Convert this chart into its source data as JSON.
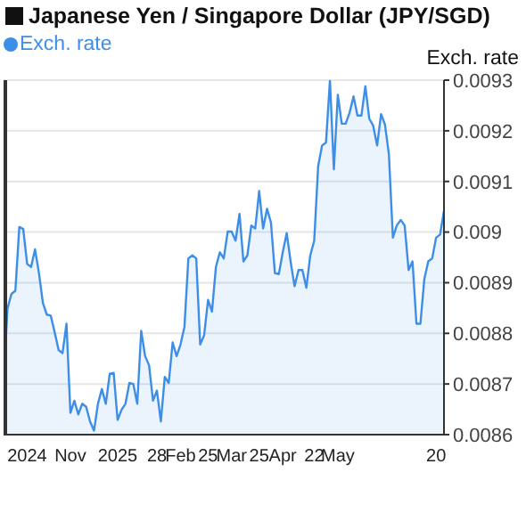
{
  "chart_data": {
    "type": "area",
    "title": "Japanese Yen / Singapore Dollar (JPY/SGD)",
    "ylabel": "Exch. rate",
    "legend": "top left",
    "grid": "y",
    "categories": [
      null,
      null,
      null,
      null,
      null,
      null,
      "2024",
      null,
      null,
      null,
      null,
      null,
      null,
      null,
      null,
      null,
      null,
      "Nov",
      null,
      null,
      null,
      null,
      null,
      null,
      null,
      null,
      null,
      null,
      null,
      "2025",
      null,
      null,
      null,
      null,
      null,
      null,
      null,
      null,
      null,
      "28",
      null,
      null,
      null,
      null,
      null,
      "Feb",
      null,
      null,
      null,
      null,
      null,
      null,
      "25",
      null,
      null,
      null,
      null,
      null,
      "Mar",
      null,
      null,
      null,
      null,
      null,
      null,
      "25",
      null,
      null,
      null,
      null,
      null,
      "Apr",
      null,
      null,
      null,
      null,
      null,
      null,
      null,
      "22",
      null,
      null,
      null,
      null,
      null,
      "May",
      null,
      null,
      null,
      null,
      null,
      null,
      null,
      null,
      null,
      null,
      null,
      null,
      null,
      null,
      null,
      null,
      null,
      null,
      null,
      null,
      null,
      null,
      null,
      null,
      "20",
      null,
      null
    ],
    "series": [
      {
        "name": "Exch. rate",
        "color": "#3d8ee8",
        "values": [
          0.008708,
          0.008849,
          0.008878,
          0.008884,
          0.00901,
          0.009006,
          0.008937,
          0.008931,
          0.008966,
          0.008919,
          0.00886,
          0.008837,
          0.008835,
          0.008802,
          0.008767,
          0.008761,
          0.008819,
          0.008643,
          0.008667,
          0.00864,
          0.008661,
          0.008655,
          0.008626,
          0.008608,
          0.008661,
          0.00869,
          0.008661,
          0.00872,
          0.008722,
          0.008629,
          0.008649,
          0.008661,
          0.008702,
          0.0087,
          0.008661,
          0.008805,
          0.008755,
          0.008737,
          0.008667,
          0.008687,
          0.008626,
          0.008714,
          0.008702,
          0.008782,
          0.008755,
          0.008778,
          0.008813,
          0.008948,
          0.008954,
          0.008948,
          0.008778,
          0.008796,
          0.008866,
          0.008843,
          0.008931,
          0.00896,
          0.008948,
          0.009001,
          0.009001,
          0.008983,
          0.009036,
          0.008942,
          0.008954,
          0.009013,
          0.009007,
          0.009081,
          0.009007,
          0.009046,
          0.009019,
          0.008919,
          0.008917,
          0.00896,
          0.008998,
          0.008942,
          0.008893,
          0.008925,
          0.008925,
          0.00889,
          0.008954,
          0.008983,
          0.00913,
          0.009171,
          0.009177,
          0.0093,
          0.009124,
          0.009271,
          0.009214,
          0.009214,
          0.009236,
          0.009268,
          0.00923,
          0.00923,
          0.009288,
          0.009224,
          0.00921,
          0.009171,
          0.009233,
          0.009212,
          0.009153,
          0.008989,
          0.009013,
          0.009024,
          0.009013,
          0.008925,
          0.008942,
          0.008819,
          0.008819,
          0.008907,
          0.008942,
          0.008948,
          0.008989,
          0.008995,
          0.009042
        ]
      }
    ],
    "ylim": [
      0.0086,
      0.0093
    ],
    "yticks": [
      0.0086,
      0.0087,
      0.0088,
      0.0089,
      0.009,
      0.0091,
      0.0092,
      0.0093
    ]
  }
}
